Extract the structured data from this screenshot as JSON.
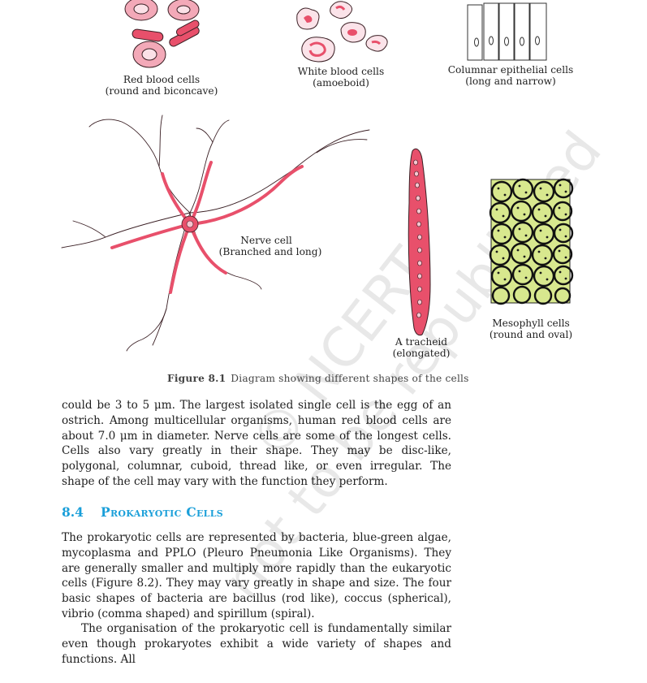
{
  "figure": {
    "labels": {
      "red_blood": [
        "Red blood cells",
        "(round and biconcave)"
      ],
      "white_blood": [
        "White blood cells",
        "(amoeboid)"
      ],
      "columnar": [
        "Columnar epithelial cells",
        "(long and narrow)"
      ],
      "nerve": [
        "Nerve cell",
        "(Branched and long)"
      ],
      "tracheid": [
        "A tracheid",
        "(elongated)"
      ],
      "mesophyll": [
        "Mesophyll cells",
        "(round and oval)"
      ]
    },
    "caption_label": "Figure 8.1",
    "caption_text": "Diagram showing different shapes of the cells"
  },
  "paragraph_1": "could be 3 to 5 μm. The largest isolated single cell is the egg of an ostrich. Among multicellular organisms, human red blood cells are about 7.0 μm in diameter. Nerve cells are some of the longest cells. Cells also vary greatly in their shape. They may be disc-like, polygonal, columnar, cuboid, thread like, or even irregular. The shape of the cell may vary with the function they perform.",
  "section": {
    "number": "8.4",
    "title": "Prokaryotic Cells"
  },
  "paragraph_2": "The prokaryotic cells are represented by bacteria, blue-green algae, mycoplasma and PPLO (Pleuro Pneumonia Like Organisms). They are generally smaller and multiply more rapidly than the eukaryotic cells (Figure 8.2). They may vary greatly in shape and size. The four basic shapes of bacteria are bacillus (rod like), coccus (spherical), vibrio (comma shaped) and spirillum (spiral).",
  "paragraph_3": "The organisation of the prokaryotic cell is fundamentally similar even though prokaryotes exhibit a wide variety of shapes and functions. All",
  "watermark": [
    "© NCERT",
    "not to be republished"
  ],
  "colors": {
    "heading": "#1a9fd9",
    "cell_pink": "#e8506b",
    "cell_light_pink": "#f4b5c2",
    "mesophyll_green": "#d4e58a"
  }
}
